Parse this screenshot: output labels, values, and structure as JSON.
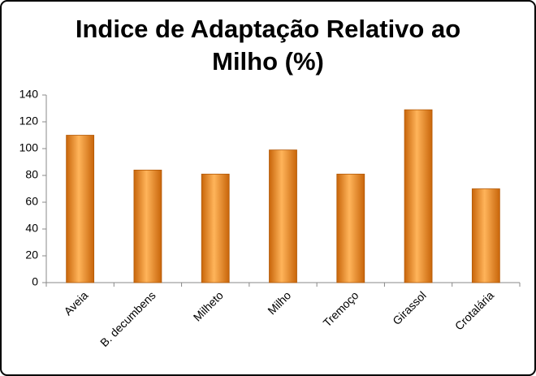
{
  "chart_data": {
    "type": "bar",
    "title": "Indice de Adaptação Relativo ao Milho (%)",
    "categories": [
      "Aveia",
      "B. decumbens",
      "Milheto",
      "Milho",
      "Tremoço",
      "Girassol",
      "Crotalária"
    ],
    "values": [
      110,
      84,
      81,
      99,
      81,
      129,
      70
    ],
    "color": "#f28c1e",
    "ylim": [
      0,
      140
    ],
    "yticks": [
      0,
      20,
      40,
      60,
      80,
      100,
      120,
      140
    ],
    "grid": false
  }
}
